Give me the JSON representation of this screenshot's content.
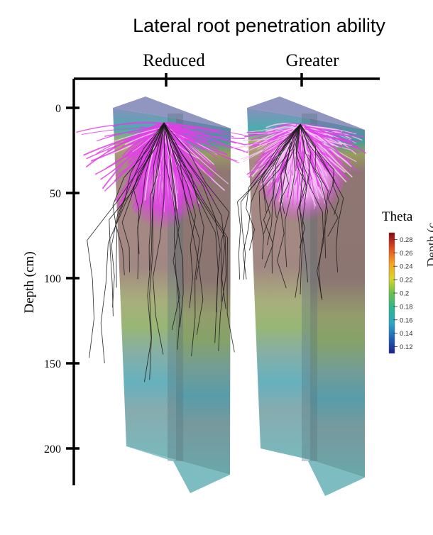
{
  "title": "Lateral root penetration ability",
  "columns": [
    {
      "label": "Reduced"
    },
    {
      "label": "Greater"
    }
  ],
  "depth_axis": {
    "label": "Depth (cm)",
    "ticks": [
      {
        "value": 0,
        "label": "0"
      },
      {
        "value": 50,
        "label": "50"
      },
      {
        "value": 100,
        "label": "100"
      },
      {
        "value": 150,
        "label": "150"
      },
      {
        "value": 200,
        "label": "200"
      }
    ]
  },
  "colorbar": {
    "title": "Theta",
    "min": 0.11,
    "max": 0.29,
    "ticks": [
      "0.28",
      "0.26",
      "0.24",
      "0.22",
      "0.2",
      "0.18",
      "0.16",
      "0.14",
      "0.12"
    ],
    "colors": [
      "#1b1e8a",
      "#1f5fb5",
      "#2aa8c8",
      "#2bb88e",
      "#6cc14a",
      "#d7d62a",
      "#f5a623",
      "#e5551d",
      "#b0201d",
      "#7a0d0d"
    ]
  },
  "edge_text": "Depth (c",
  "colors": {
    "lateral_roots": "#e040e6",
    "lateral_roots_light": "#f6c8f3",
    "axial_roots": "#1a1a1a",
    "soil_moist": "#9a8078",
    "soil_dry": "#6fb0b8",
    "soil_mid": "#9fb06a"
  }
}
